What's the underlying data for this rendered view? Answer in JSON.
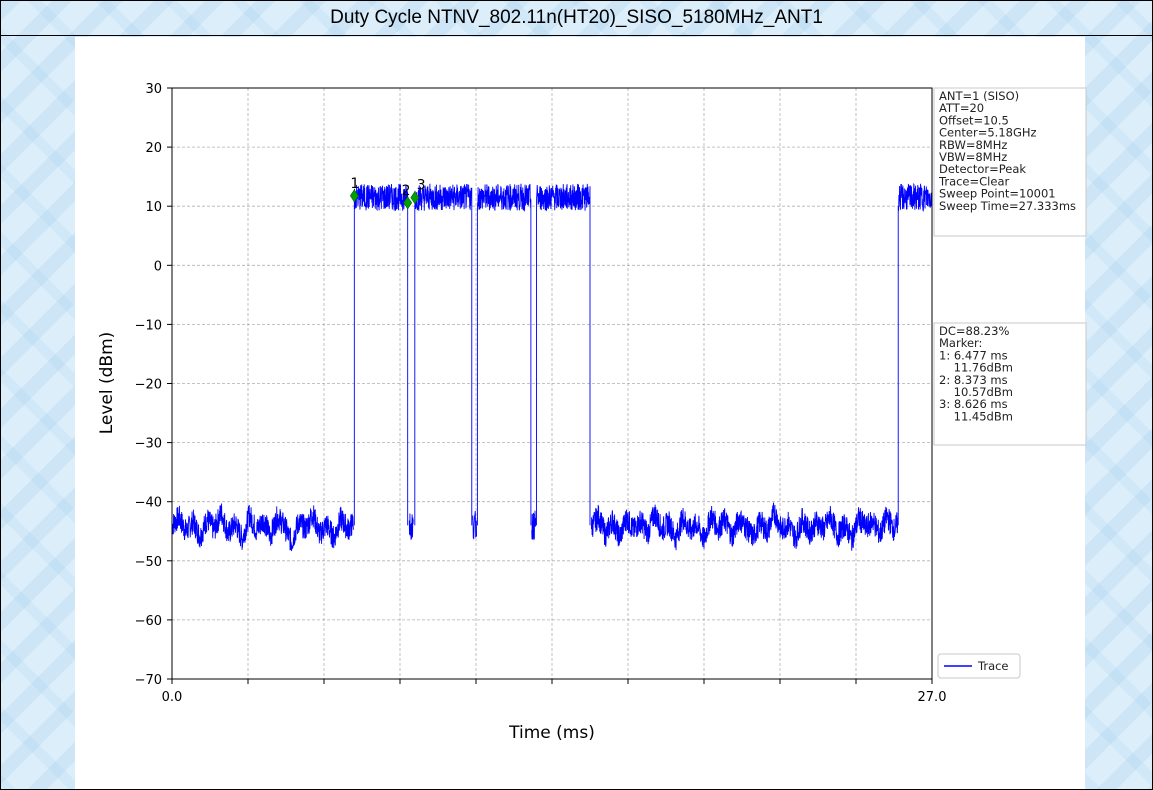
{
  "window": {
    "title": "Duty Cycle NTNV_802.11n(HT20)_SISO_5180MHz_ANT1"
  },
  "chart_data": {
    "type": "line",
    "title": "Duty Cycle NTNV_802.11n(HT20)_SISO_5180MHz_ANT1",
    "xlabel": "Time (ms)",
    "ylabel": "Level (dBm)",
    "xlim": [
      0,
      27
    ],
    "ylim": [
      -70,
      30
    ],
    "x_tick_labels": [
      "0.0",
      "27.0"
    ],
    "x_minor_ticks": [
      2.7,
      5.4,
      8.1,
      10.8,
      13.5,
      16.2,
      18.9,
      21.6,
      24.3
    ],
    "y_ticks": [
      30,
      20,
      10,
      0,
      -10,
      -20,
      -30,
      -40,
      -50,
      -60,
      -70
    ],
    "y_tick_labels": [
      "30",
      "20",
      "10",
      "0",
      "−10",
      "−20",
      "−30",
      "−40",
      "−50",
      "−60",
      "−70"
    ],
    "grid": true,
    "legend": {
      "position": "bottom-right",
      "entries": [
        "Trace"
      ]
    },
    "series": [
      {
        "name": "Trace",
        "color": "#0000ff",
        "noise_floor_dbm": -44,
        "on_level_dbm": 11.5,
        "on_segments_ms": [
          [
            6.477,
            8.373
          ],
          [
            8.626,
            10.65
          ],
          [
            10.85,
            12.75
          ],
          [
            12.95,
            14.85
          ],
          [
            25.8,
            27.0
          ]
        ],
        "glitch_times_ms": [
          8.5,
          10.75,
          12.85
        ],
        "noise_points": [
          [
            0,
            -44
          ],
          [
            0.25,
            -42.6
          ],
          [
            0.5,
            -45.1
          ],
          [
            0.75,
            -43.3
          ],
          [
            1.0,
            -46.0
          ],
          [
            1.25,
            -42.9
          ],
          [
            1.5,
            -44.8
          ],
          [
            1.75,
            -41.8
          ],
          [
            2.0,
            -45.5
          ],
          [
            2.25,
            -43.6
          ],
          [
            2.5,
            -46.4
          ],
          [
            2.75,
            -42.2
          ],
          [
            3.0,
            -44.9
          ],
          [
            3.25,
            -43.0
          ],
          [
            3.5,
            -45.8
          ],
          [
            3.75,
            -42.5
          ],
          [
            4.0,
            -44.2
          ],
          [
            4.25,
            -46.9
          ],
          [
            4.5,
            -43.4
          ],
          [
            4.75,
            -44.6
          ],
          [
            5.0,
            -42.0
          ],
          [
            5.25,
            -45.6
          ],
          [
            5.5,
            -43.8
          ],
          [
            5.75,
            -46.2
          ],
          [
            6.0,
            -42.8
          ],
          [
            6.25,
            -44.7
          ],
          [
            6.45,
            -43.5
          ],
          [
            14.9,
            -44.3
          ],
          [
            15.15,
            -42.4
          ],
          [
            15.4,
            -45.7
          ],
          [
            15.65,
            -43.1
          ],
          [
            15.9,
            -46.1
          ],
          [
            16.15,
            -42.7
          ],
          [
            16.4,
            -44.9
          ],
          [
            16.65,
            -43.2
          ],
          [
            16.9,
            -45.4
          ],
          [
            17.15,
            -41.9
          ],
          [
            17.4,
            -44.8
          ],
          [
            17.65,
            -43.5
          ],
          [
            17.9,
            -46.3
          ],
          [
            18.15,
            -42.6
          ],
          [
            18.4,
            -45.0
          ],
          [
            18.65,
            -43.7
          ],
          [
            18.9,
            -46.5
          ],
          [
            19.15,
            -42.3
          ],
          [
            19.4,
            -44.6
          ],
          [
            19.65,
            -43.0
          ],
          [
            19.9,
            -45.9
          ],
          [
            20.15,
            -42.8
          ],
          [
            20.4,
            -44.4
          ],
          [
            20.65,
            -46.0
          ],
          [
            20.9,
            -43.3
          ],
          [
            21.15,
            -45.2
          ],
          [
            21.4,
            -41.7
          ],
          [
            21.65,
            -44.9
          ],
          [
            21.9,
            -43.6
          ],
          [
            22.15,
            -46.2
          ],
          [
            22.4,
            -42.9
          ],
          [
            22.65,
            -45.3
          ],
          [
            22.9,
            -43.4
          ],
          [
            23.15,
            -44.7
          ],
          [
            23.4,
            -42.5
          ],
          [
            23.65,
            -45.8
          ],
          [
            23.9,
            -43.8
          ],
          [
            24.15,
            -46.4
          ],
          [
            24.4,
            -42.7
          ],
          [
            24.65,
            -44.5
          ],
          [
            24.9,
            -43.2
          ],
          [
            25.15,
            -45.6
          ],
          [
            25.4,
            -42.4
          ],
          [
            25.65,
            -44.8
          ],
          [
            25.78,
            -43.6
          ]
        ]
      }
    ],
    "markers": [
      {
        "label": "1",
        "time_ms": 6.477,
        "level_dbm": 11.76
      },
      {
        "label": "2",
        "time_ms": 8.373,
        "level_dbm": 10.57
      },
      {
        "label": "3",
        "time_ms": 8.626,
        "level_dbm": 11.45
      }
    ],
    "info_box_top": [
      "ANT=1 (SISO)",
      "ATT=20",
      "Offset=10.5",
      "Center=5.18GHz",
      "RBW=8MHz",
      "VBW=8MHz",
      "Detector=Peak",
      "Trace=Clear",
      "Sweep Point=10001",
      "Sweep Time=27.333ms"
    ],
    "info_box_bottom": [
      "DC=88.23%",
      "Marker:",
      "1: 6.477 ms",
      "    11.76dBm",
      "2: 8.373 ms",
      "    10.57dBm",
      "3: 8.626 ms",
      "    11.45dBm"
    ]
  }
}
